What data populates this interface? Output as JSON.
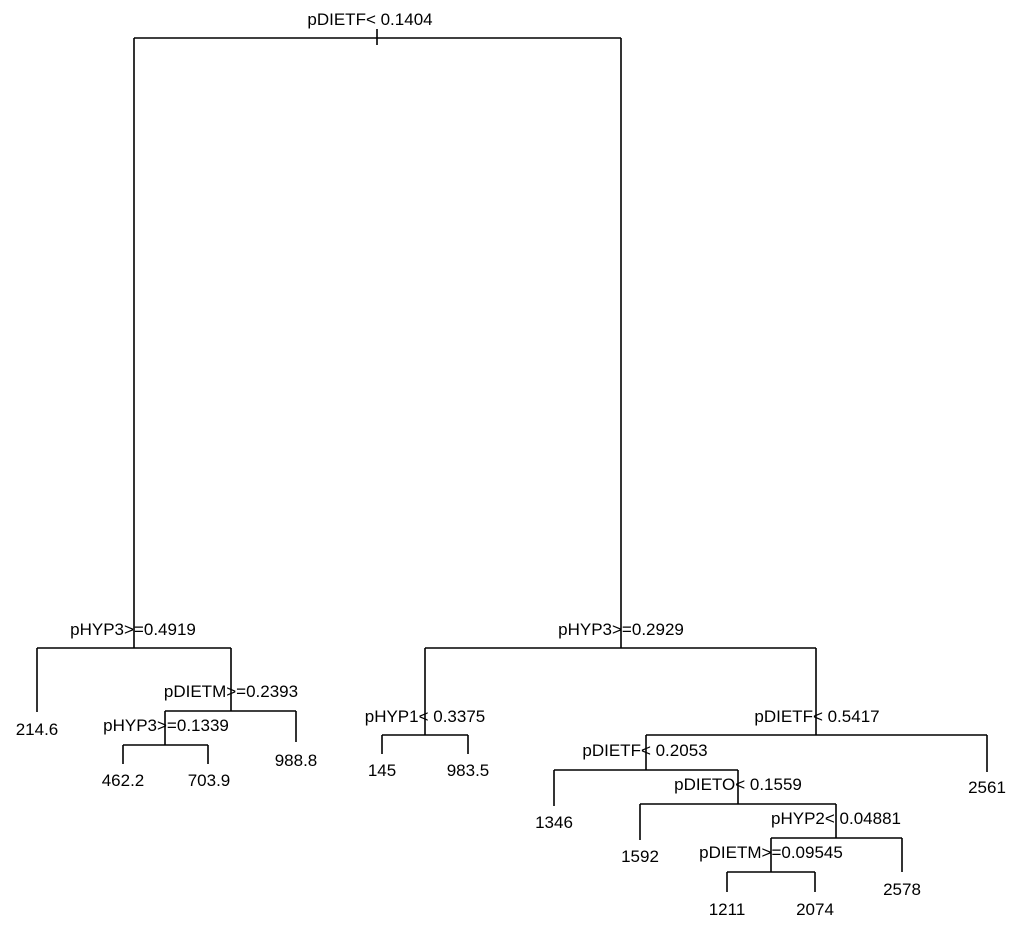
{
  "tree": {
    "splits": [
      {
        "id": "root",
        "label": "pDIETF< 0.1404"
      },
      {
        "id": "n2",
        "label": "pHYP3>=0.4919"
      },
      {
        "id": "n5",
        "label": "pDIETM>=0.2393"
      },
      {
        "id": "n10",
        "label": "pHYP3>=0.1339"
      },
      {
        "id": "n3",
        "label": "pHYP3>=0.2929"
      },
      {
        "id": "n6",
        "label": "pHYP1< 0.3375"
      },
      {
        "id": "n7",
        "label": "pDIETF< 0.5417"
      },
      {
        "id": "n14",
        "label": "pDIETF< 0.2053"
      },
      {
        "id": "n29",
        "label": "pDIETO< 0.1559"
      },
      {
        "id": "n59",
        "label": "pHYP2< 0.04881"
      },
      {
        "id": "n118",
        "label": "pDIETM>=0.09545"
      }
    ],
    "leaves": [
      {
        "id": "l4",
        "value": "214.6"
      },
      {
        "id": "l20",
        "value": "462.2"
      },
      {
        "id": "l21",
        "value": "703.9"
      },
      {
        "id": "l11",
        "value": "988.8"
      },
      {
        "id": "l12",
        "value": "145"
      },
      {
        "id": "l13",
        "value": "983.5"
      },
      {
        "id": "l28",
        "value": "1346"
      },
      {
        "id": "l58",
        "value": "1592"
      },
      {
        "id": "l236",
        "value": "1211"
      },
      {
        "id": "l237",
        "value": "2074"
      },
      {
        "id": "l119",
        "value": "2578"
      },
      {
        "id": "l15",
        "value": "2561"
      }
    ]
  }
}
